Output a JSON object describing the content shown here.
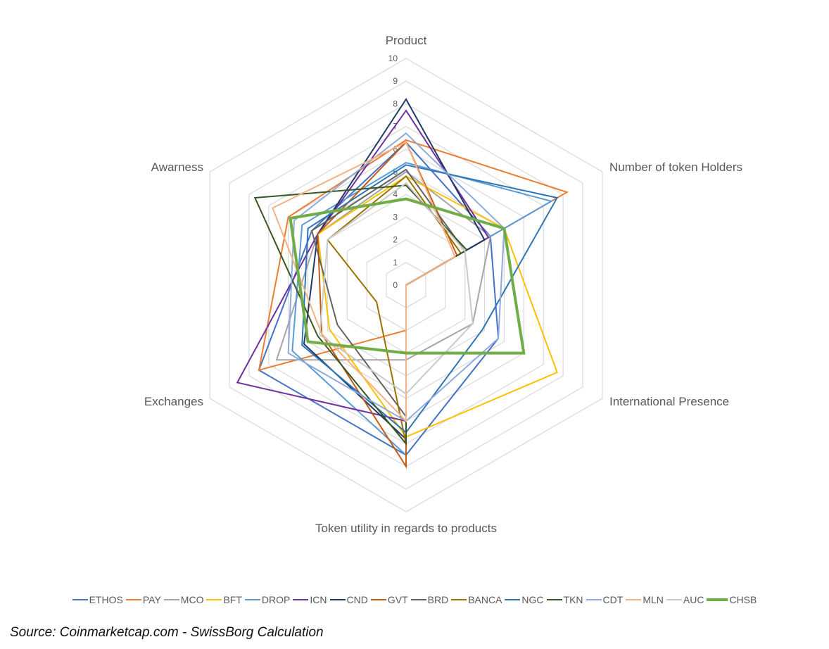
{
  "chart_data": {
    "type": "radar",
    "axes": [
      "Product",
      "Number of token Holders",
      "International Presence",
      "Token utility in regards to products",
      "Exchanges",
      "Awarness"
    ],
    "range": [
      0,
      10
    ],
    "ticks": [
      "0",
      "1",
      "2",
      "3",
      "4",
      "5",
      "6",
      "7",
      "8",
      "9",
      "10"
    ],
    "grid": true,
    "legend_position": "bottom",
    "series": [
      {
        "name": "ETHOS",
        "color": "#4472C4",
        "width": 2,
        "values": [
          6.3,
          4.3,
          4.7,
          7.5,
          7.5,
          4.8
        ]
      },
      {
        "name": "PAY",
        "color": "#ED7D31",
        "width": 2,
        "values": [
          6.4,
          8.2,
          0,
          2.0,
          7.5,
          6.0
        ]
      },
      {
        "name": "MCO",
        "color": "#A5A5A5",
        "width": 2,
        "values": [
          5.0,
          4.3,
          3.4,
          3.3,
          6.6,
          4.5
        ]
      },
      {
        "name": "BFT",
        "color": "#FFC000",
        "width": 2,
        "values": [
          4.8,
          5.0,
          7.7,
          6.7,
          3.9,
          4.5
        ]
      },
      {
        "name": "DROP",
        "color": "#5B9BD5",
        "width": 2,
        "values": [
          5.4,
          7.4,
          0,
          7.5,
          5.8,
          5.3
        ]
      },
      {
        "name": "ICN",
        "color": "#7030A0",
        "width": 2,
        "values": [
          7.7,
          4.2,
          0,
          6.0,
          8.6,
          4.5
        ]
      },
      {
        "name": "CND",
        "color": "#1F3864",
        "width": 2,
        "values": [
          8.2,
          4.0,
          0,
          6.8,
          5.2,
          4.5
        ]
      },
      {
        "name": "GVT",
        "color": "#C55A11",
        "width": 2,
        "values": [
          6.3,
          2.6,
          0,
          8.0,
          4.3,
          4.5
        ]
      },
      {
        "name": "BRD",
        "color": "#636363",
        "width": 2,
        "values": [
          5.1,
          3.0,
          0,
          5.8,
          3.5,
          4.8
        ]
      },
      {
        "name": "BANCA",
        "color": "#997300",
        "width": 2,
        "values": [
          4.8,
          2.8,
          0,
          7.0,
          1.5,
          4.0
        ]
      },
      {
        "name": "NGC",
        "color": "#2E75B6",
        "width": 2,
        "values": [
          5.3,
          7.7,
          3.9,
          6.5,
          5.3,
          5.0
        ]
      },
      {
        "name": "TKN",
        "color": "#385723",
        "width": 2,
        "values": [
          4.4,
          3.1,
          0,
          7.0,
          4.5,
          7.7
        ]
      },
      {
        "name": "CDT",
        "color": "#8FAADC",
        "width": 2,
        "values": [
          6.7,
          5.0,
          4.7,
          6.0,
          6.0,
          5.7
        ]
      },
      {
        "name": "MLN",
        "color": "#F4B183",
        "width": 2,
        "values": [
          6.3,
          2.5,
          0,
          6.0,
          4.3,
          6.8
        ]
      },
      {
        "name": "AUC",
        "color": "#C9C9C9",
        "width": 2,
        "values": [
          4.5,
          3.0,
          3.4,
          4.8,
          4.4,
          4.0
        ]
      },
      {
        "name": "CHSB",
        "color": "#70AD47",
        "width": 4,
        "values": [
          3.8,
          5.0,
          6.0,
          3.0,
          5.0,
          5.9
        ]
      }
    ]
  },
  "source_text": "Source: Coinmarketcap.com - SwissBorg Calculation"
}
